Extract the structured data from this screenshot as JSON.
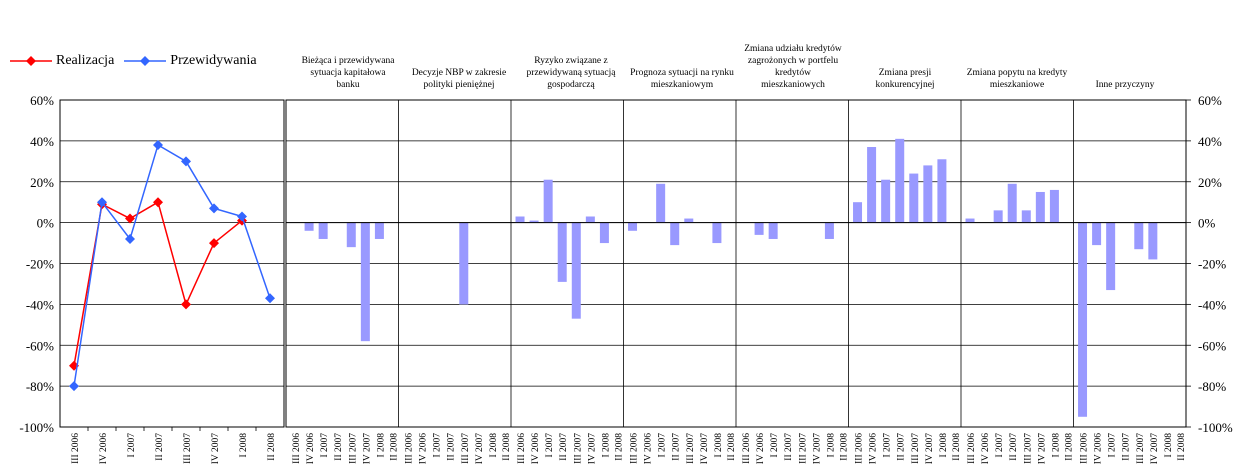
{
  "chart_data": {
    "type": "bar",
    "ylim": [
      -100,
      60
    ],
    "yticks": [
      "-100%",
      "-80%",
      "-60%",
      "-40%",
      "-20%",
      "0%",
      "20%",
      "40%",
      "60%"
    ],
    "tick_values": [
      -100,
      -80,
      -60,
      -40,
      -20,
      0,
      20,
      40,
      60
    ],
    "grid": true,
    "legend_position": "top-left",
    "line_panel": {
      "type": "line",
      "categories": [
        "III 2006",
        "IV 2006",
        "I 2007",
        "II 2007",
        "III 2007",
        "IV 2007",
        "I 2008",
        "II 2008"
      ],
      "series": [
        {
          "name": "Realizacja",
          "color": "#ff0000",
          "values": [
            -70,
            9,
            2,
            10,
            -40,
            -10,
            1,
            null
          ]
        },
        {
          "name": "Przewidywania",
          "color": "#3366ff",
          "values": [
            -80,
            10,
            -8,
            38,
            30,
            7,
            3,
            -37
          ]
        }
      ]
    },
    "bar_color": "#9999ff",
    "bar_categories": [
      "III 2006",
      "IV 2006",
      "I 2007",
      "II 2007",
      "III 2007",
      "IV 2007",
      "I 2008"
    ],
    "panels": [
      {
        "title": "Bieżąca i przewidywana sytuacja kapitałowa banku",
        "values": [
          0,
          -4,
          -8,
          0,
          -12,
          -58,
          -8
        ]
      },
      {
        "title": "Decyzje NBP w zakresie polityki pieniężnej",
        "values": [
          0,
          0,
          0,
          0,
          -40,
          0,
          0
        ]
      },
      {
        "title": "Ryzyko związane z przewidywaną sytuacją gospodarczą",
        "values": [
          3,
          1,
          21,
          -29,
          -47,
          3,
          -10
        ]
      },
      {
        "title": "Prognoza sytuacji na rynku mieszkaniowym",
        "values": [
          -4,
          0,
          19,
          -11,
          2,
          0,
          -10
        ]
      },
      {
        "title": "Zmiana udziału kredytów zagrożonych w portfelu kredytów mieszkaniowych",
        "values": [
          0,
          -6,
          -8,
          0,
          0,
          0,
          -8
        ]
      },
      {
        "title": "Zmiana presji konkurencyjnej",
        "values": [
          10,
          37,
          21,
          41,
          24,
          28,
          31
        ]
      },
      {
        "title": "Zmiana popytu na kredyty mieszkaniowe",
        "values": [
          2,
          0,
          6,
          19,
          6,
          15,
          16
        ]
      },
      {
        "title": "Inne przyczyny",
        "values": [
          -95,
          -11,
          -33,
          0,
          -13,
          -18,
          0
        ]
      }
    ]
  }
}
